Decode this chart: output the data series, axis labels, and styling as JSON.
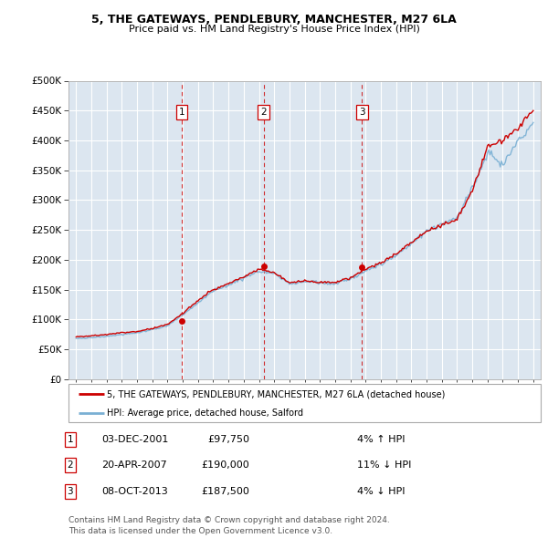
{
  "title": "5, THE GATEWAYS, PENDLEBURY, MANCHESTER, M27 6LA",
  "subtitle": "Price paid vs. HM Land Registry's House Price Index (HPI)",
  "legend_label_red": "5, THE GATEWAYS, PENDLEBURY, MANCHESTER, M27 6LA (detached house)",
  "legend_label_blue": "HPI: Average price, detached house, Salford",
  "footer": "Contains HM Land Registry data © Crown copyright and database right 2024.\nThis data is licensed under the Open Government Licence v3.0.",
  "sales": [
    {
      "num": 1,
      "date": "03-DEC-2001",
      "price": 97750,
      "pct": "4%",
      "dir": "↑",
      "year": 2001.92
    },
    {
      "num": 2,
      "date": "20-APR-2007",
      "price": 190000,
      "pct": "11%",
      "dir": "↓",
      "year": 2007.3
    },
    {
      "num": 3,
      "date": "08-OCT-2013",
      "price": 187500,
      "pct": "4%",
      "dir": "↓",
      "year": 2013.77
    }
  ],
  "ylim": [
    0,
    500000
  ],
  "yticks": [
    0,
    50000,
    100000,
    150000,
    200000,
    250000,
    300000,
    350000,
    400000,
    450000,
    500000
  ],
  "xlim": [
    1994.5,
    2025.5
  ],
  "plot_bg": "#dce6f0",
  "grid_color": "#ffffff",
  "red_color": "#cc0000",
  "blue_color": "#7ab0d4"
}
